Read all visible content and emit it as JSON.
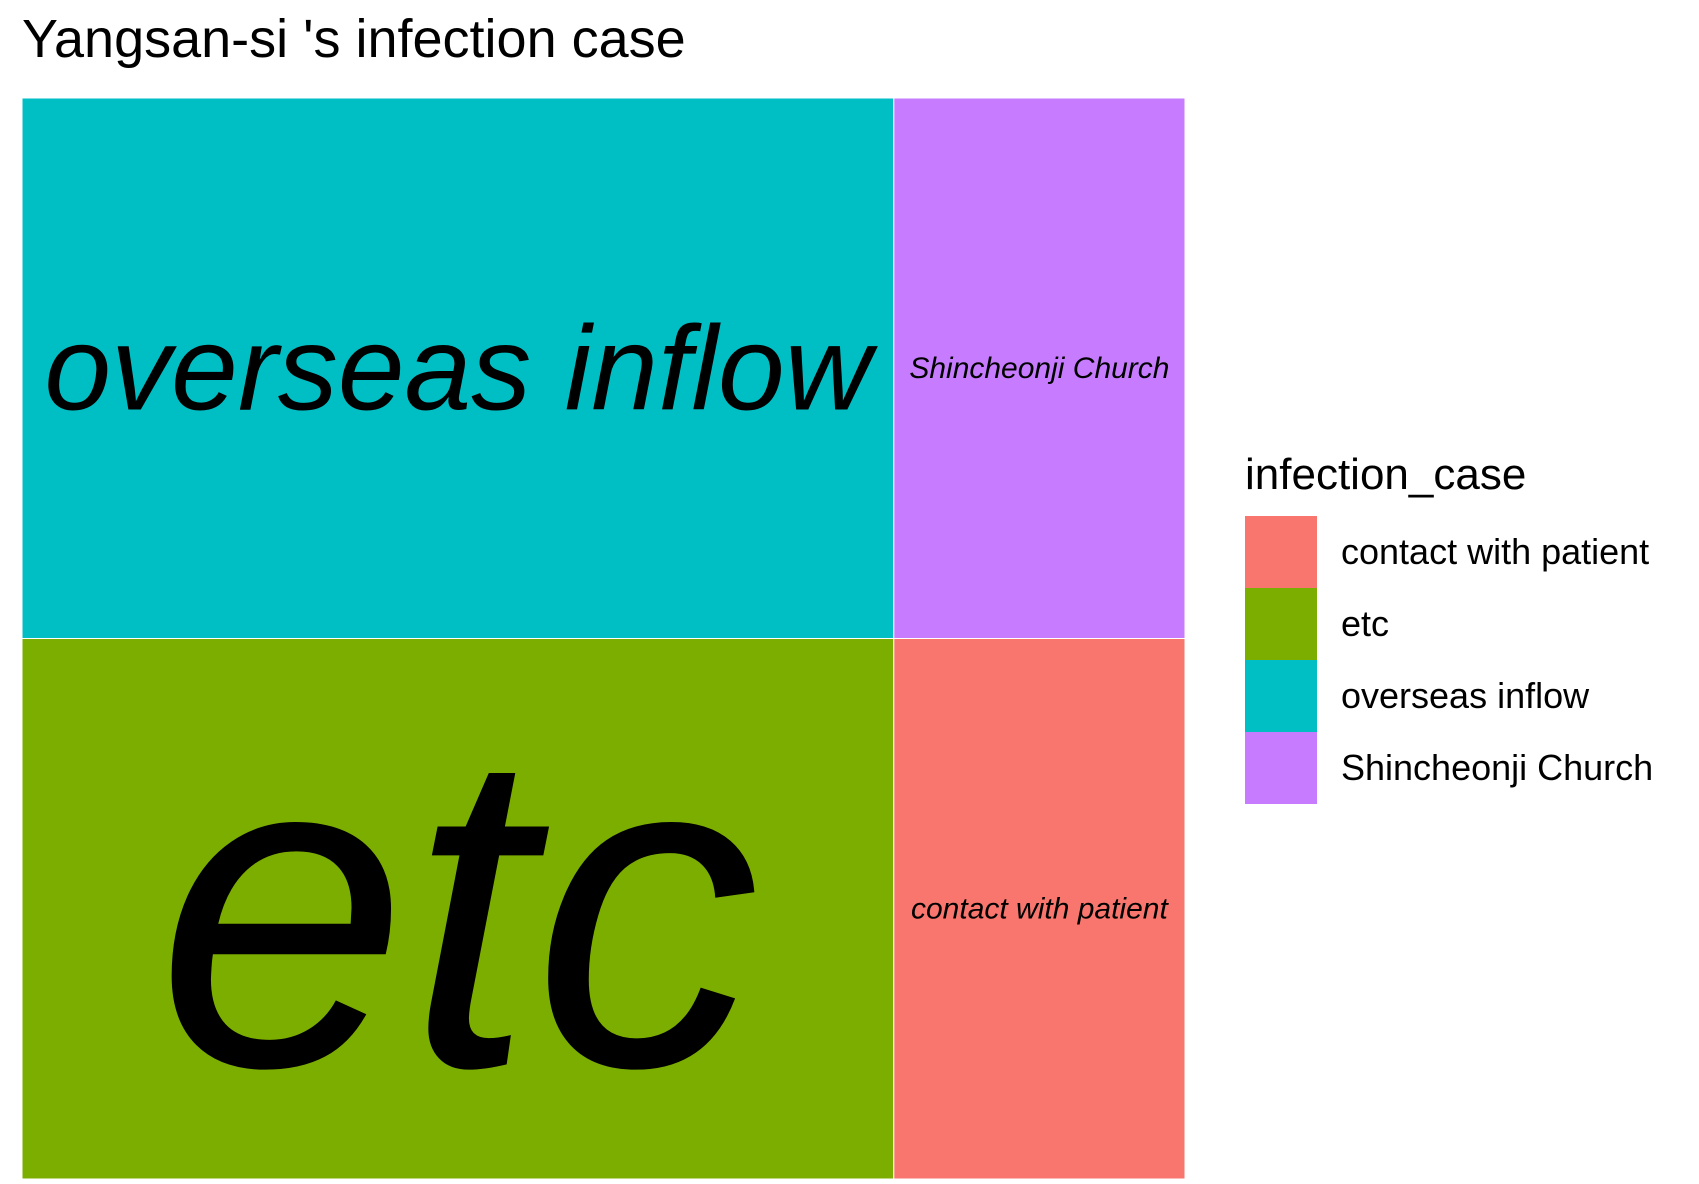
{
  "chart_data": {
    "type": "treemap",
    "title": "Yangsan-si 's infection case",
    "legend_title": "infection_case",
    "legend_position": "right",
    "tiles": [
      {
        "label": "etc",
        "value": 5,
        "color": "#7CAE00"
      },
      {
        "label": "overseas inflow",
        "value": 5,
        "color": "#00BFC4"
      },
      {
        "label": "contact with patient",
        "value": 1.67,
        "color": "#F8766D"
      },
      {
        "label": "Shincheonji Church",
        "value": 1.67,
        "color": "#C77CFF"
      }
    ],
    "legend": [
      {
        "label": "contact with patient",
        "color": "#F8766D"
      },
      {
        "label": "etc",
        "color": "#7CAE00"
      },
      {
        "label": "overseas inflow",
        "color": "#00BFC4"
      },
      {
        "label": "Shincheonji Church",
        "color": "#C77CFF"
      }
    ]
  }
}
